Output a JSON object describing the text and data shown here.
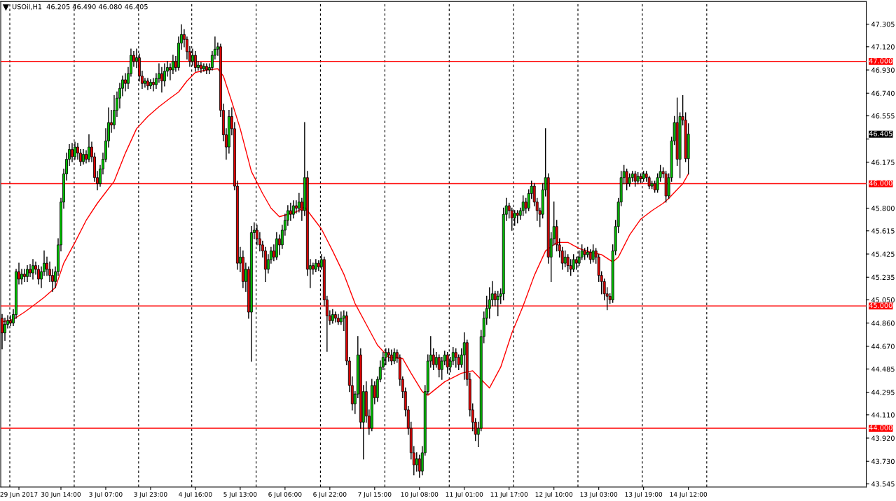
{
  "chart_data": {
    "type": "candlestick",
    "title": "USOil,H1  46.205 46.490 46.080 46.405",
    "colors": [
      "#e00000",
      "#00c000",
      "#00c000",
      "#e00000",
      "#00c000",
      "#00c000",
      "#e00000",
      "#00c000",
      "#e00000",
      "#00c000",
      "#e00000",
      "#00c000",
      "#e00000",
      "#e00000",
      "#00c000",
      "#00c000",
      "#e00000",
      "#e00000",
      "#e00000",
      "#00c000",
      "#00c000",
      "#00c000",
      "#00c000",
      "#00c000",
      "#00c000",
      "#e00000",
      "#00c000",
      "#e00000",
      "#e00000",
      "#00c000",
      "#e00000",
      "#00c000",
      "#e00000",
      "#e00000",
      "#e00000",
      "#00c000",
      "#00c000",
      "#00c000",
      "#00c000",
      "#e00000",
      "#00c000",
      "#00c000",
      "#00c000",
      "#00c000",
      "#e00000",
      "#00c000",
      "#00c000",
      "#e00000",
      "#00c000",
      "#e00000",
      "#e00000",
      "#00c000",
      "#e00000",
      "#00c000",
      "#e00000",
      "#00c000",
      "#00c000",
      "#e00000",
      "#00c000",
      "#00c000",
      "#e00000",
      "#00c000",
      "#e00000",
      "#00c000",
      "#00c000",
      "#e00000",
      "#e00000",
      "#e00000",
      "#00c000",
      "#e00000",
      "#00c000",
      "#e00000",
      "#00c000",
      "#e00000",
      "#00c000",
      "#00c000",
      "#00c000",
      "#00c000",
      "#e00000",
      "#e00000",
      "#e00000",
      "#00c000",
      "#e00000",
      "#e00000",
      "#e00000",
      "#00c000",
      "#e00000",
      "#00c000",
      "#e00000",
      "#00c000",
      "#00c000",
      "#e00000",
      "#e00000",
      "#e00000",
      "#e00000",
      "#00c000",
      "#00c000",
      "#e00000",
      "#00c000",
      "#e00000",
      "#00c000",
      "#00c000",
      "#00c000",
      "#e00000",
      "#00c000",
      "#e00000",
      "#00c000",
      "#e00000",
      "#00c000",
      "#e00000",
      "#00c000",
      "#e00000",
      "#00c000",
      "#e00000",
      "#00c000",
      "#e00000",
      "#e00000",
      "#e00000",
      "#00c000",
      "#e00000",
      "#e00000",
      "#00c000",
      "#00c000",
      "#e00000",
      "#e00000",
      "#e00000",
      "#00c000",
      "#00c000",
      "#e00000",
      "#00c000",
      "#e00000",
      "#e00000",
      "#00c000",
      "#e00000",
      "#00c000",
      "#00c000",
      "#00c000",
      "#00c000",
      "#e00000",
      "#e00000",
      "#00c000",
      "#e00000",
      "#e00000",
      "#e00000",
      "#e00000",
      "#e00000",
      "#e00000",
      "#e00000",
      "#00c000",
      "#e00000",
      "#00c000",
      "#00c000",
      "#00c000",
      "#00c000",
      "#e00000",
      "#00c000",
      "#e00000",
      "#00c000",
      "#00c000",
      "#e00000",
      "#00c000",
      "#00c000",
      "#e00000",
      "#e00000",
      "#00c000",
      "#00c000",
      "#e00000",
      "#e00000",
      "#e00000",
      "#e00000",
      "#00c000",
      "#00c000",
      "#00c000",
      "#00c000",
      "#00c000",
      "#00c000",
      "#e00000",
      "#00c000",
      "#00c000",
      "#00c000",
      "#00c000",
      "#e00000",
      "#e00000",
      "#00c000",
      "#e00000",
      "#00c000",
      "#00c000",
      "#e00000",
      "#00c000",
      "#00c000",
      "#e00000",
      "#e00000",
      "#e00000",
      "#00c000",
      "#00c000",
      "#e00000",
      "#00c000",
      "#00c000",
      "#e00000",
      "#e00000",
      "#e00000",
      "#00c000",
      "#e00000",
      "#e00000",
      "#00c000",
      "#e00000",
      "#00c000",
      "#00c000",
      "#e00000",
      "#00c000",
      "#e00000",
      "#00c000",
      "#e00000",
      "#e00000",
      "#e00000",
      "#e00000",
      "#e00000",
      "#e00000",
      "#00c000",
      "#00c000",
      "#00c000",
      "#00c000",
      "#00c000",
      "#e00000",
      "#00c000",
      "#00c000",
      "#e00000",
      "#00c000",
      "#e00000",
      "#00c000",
      "#e00000",
      "#e00000",
      "#00c000",
      "#e00000",
      "#00c000",
      "#00c000",
      "#e00000",
      "#e00000",
      "#00c000",
      "#00c000",
      "#00c000",
      "#e00000",
      "#00c000",
      "#e00000",
      "#e00000",
      "#00c000",
      null,
      null,
      null,
      null,
      null,
      null,
      null,
      null,
      null,
      null,
      null,
      null,
      null,
      null,
      null,
      null,
      null,
      null,
      null,
      null,
      null,
      null,
      null,
      null,
      null,
      null,
      null,
      null,
      null,
      null,
      null,
      null,
      null,
      null,
      null,
      null,
      null,
      null,
      null,
      null,
      null,
      null,
      null,
      null,
      null,
      null,
      null,
      null,
      null,
      null,
      null,
      null,
      null,
      null,
      null,
      null,
      null,
      null,
      null,
      null,
      null,
      null,
      null
    ],
    "categories": [
      null,
      null,
      null,
      null,
      null,
      null,
      "29 Jun 2017",
      null,
      null,
      null,
      null,
      null,
      null,
      null,
      null,
      null,
      null,
      null,
      null,
      null,
      null,
      "30 Jun 14:00",
      null,
      null,
      null,
      null,
      null,
      null,
      null,
      null,
      null,
      null,
      null,
      null,
      null,
      null,
      null,
      "3 Jul 07:00",
      null,
      null,
      null,
      null,
      null,
      null,
      null,
      null,
      null,
      null,
      null,
      null,
      null,
      null,
      null,
      "3 Jul 23:00",
      null,
      null,
      null,
      null,
      null,
      null,
      null,
      null,
      null,
      null,
      null,
      null,
      null,
      null,
      null,
      "4 Jul 16:00",
      null,
      null,
      null,
      null,
      null,
      null,
      null,
      null,
      null,
      null,
      null,
      null,
      null,
      null,
      null,
      "5 Jul 13:00",
      null,
      null,
      null,
      null,
      null,
      null,
      null,
      null,
      null,
      null,
      null,
      null,
      null,
      null,
      null,
      "6 Jul 06:00",
      null,
      null,
      null,
      null,
      null,
      null,
      null,
      null,
      null,
      null,
      null,
      null,
      null,
      null,
      null,
      "6 Jul 22:00",
      null,
      null,
      null,
      null,
      null,
      null,
      null,
      null,
      null,
      null,
      null,
      null,
      null,
      null,
      null,
      "7 Jul 15:00",
      null,
      null,
      null,
      null,
      null,
      null,
      null,
      null,
      null,
      null,
      null,
      null,
      null,
      null,
      null,
      "10 Jul 08:00",
      null,
      null,
      null,
      null,
      null,
      null,
      null,
      null,
      null,
      null,
      null,
      null,
      null,
      null,
      null,
      "11 Jul 01:00",
      null,
      null,
      null,
      null,
      null,
      null,
      null,
      null,
      null,
      null,
      null,
      null,
      null,
      null,
      null,
      "11 Jul 17:00",
      null,
      null,
      null,
      null,
      null,
      null,
      null,
      null,
      null,
      null,
      null,
      null,
      null,
      null,
      null,
      "12 Jul 10:00",
      null,
      null,
      null,
      null,
      null,
      null,
      null,
      null,
      null,
      null,
      null,
      null,
      null,
      null,
      null,
      "13 Jul 03:00",
      null,
      null,
      null,
      null,
      null,
      null,
      null,
      null,
      null,
      null,
      null,
      null,
      null,
      null,
      null,
      "13 Jul 19:00",
      null,
      null,
      null,
      null,
      null,
      null,
      null,
      null,
      null,
      null,
      null,
      null,
      null,
      null,
      null,
      "14 Jul 12:00",
      null,
      null,
      null,
      null,
      null,
      null,
      null,
      null,
      null,
      null,
      null,
      null,
      null,
      null,
      null,
      null,
      null,
      null,
      null,
      null,
      null,
      null,
      null,
      null,
      null,
      null,
      null,
      null,
      null,
      null,
      null,
      null,
      null,
      null,
      null,
      null,
      null,
      null,
      null,
      null,
      null,
      null,
      null,
      null,
      null,
      null,
      null,
      null,
      null,
      null,
      null,
      null,
      null,
      null,
      null,
      null,
      null,
      null,
      null,
      null,
      null,
      null,
      null
    ],
    "ohlc": [
      [
        44.9,
        44.93,
        44.65,
        44.78
      ],
      [
        44.78,
        44.9,
        44.72,
        44.85
      ],
      [
        44.85,
        44.92,
        44.82,
        44.88
      ],
      [
        44.88,
        44.92,
        44.84,
        44.86
      ],
      [
        44.86,
        44.97,
        44.84,
        44.93
      ],
      [
        44.93,
        45.3,
        44.9,
        45.28
      ],
      [
        45.28,
        45.35,
        45.18,
        45.22
      ],
      [
        45.22,
        45.3,
        45.18,
        45.26
      ],
      [
        45.26,
        45.3,
        45.2,
        45.24
      ],
      [
        45.24,
        45.33,
        45.2,
        45.3
      ],
      [
        45.3,
        45.34,
        45.24,
        45.27
      ],
      [
        45.27,
        45.38,
        45.22,
        45.33
      ],
      [
        45.33,
        45.36,
        45.26,
        45.3
      ],
      [
        45.3,
        45.33,
        45.18,
        45.22
      ],
      [
        45.22,
        45.32,
        45.15,
        45.28
      ],
      [
        45.28,
        45.45,
        45.25,
        45.35
      ],
      [
        45.35,
        45.4,
        45.25,
        45.3
      ],
      [
        45.3,
        45.36,
        45.2,
        45.25
      ],
      [
        45.25,
        45.3,
        45.12,
        45.2
      ],
      [
        45.2,
        45.32,
        45.15,
        45.28
      ],
      [
        45.28,
        45.55,
        45.25,
        45.5
      ],
      [
        45.5,
        45.88,
        45.45,
        45.85
      ],
      [
        45.85,
        46.12,
        45.8,
        46.08
      ],
      [
        46.08,
        46.25,
        46.03,
        46.2
      ],
      [
        46.2,
        46.32,
        46.15,
        46.28
      ],
      [
        46.28,
        46.33,
        46.18,
        46.22
      ],
      [
        46.22,
        46.34,
        46.2,
        46.3
      ],
      [
        46.3,
        46.33,
        46.2,
        46.25
      ],
      [
        46.25,
        46.28,
        46.15,
        46.18
      ],
      [
        46.18,
        46.28,
        46.16,
        46.24
      ],
      [
        46.24,
        46.27,
        46.17,
        46.2
      ],
      [
        46.2,
        46.4,
        46.18,
        46.3
      ],
      [
        46.3,
        46.34,
        46.18,
        46.22
      ],
      [
        46.22,
        46.25,
        46.02,
        46.05
      ],
      [
        46.05,
        46.1,
        45.95,
        46.0
      ],
      [
        46.0,
        46.15,
        45.98,
        46.12
      ],
      [
        46.12,
        46.25,
        46.08,
        46.2
      ],
      [
        46.2,
        46.45,
        46.18,
        46.35
      ],
      [
        46.35,
        46.62,
        46.3,
        46.5
      ],
      [
        46.5,
        46.6,
        46.42,
        46.48
      ],
      [
        46.48,
        46.72,
        46.45,
        46.6
      ],
      [
        46.6,
        46.75,
        46.55,
        46.7
      ],
      [
        46.7,
        46.82,
        46.62,
        46.78
      ],
      [
        46.78,
        46.88,
        46.72,
        46.85
      ],
      [
        46.85,
        46.9,
        46.76,
        46.82
      ],
      [
        46.82,
        46.95,
        46.78,
        46.9
      ],
      [
        46.9,
        47.1,
        46.88,
        47.05
      ],
      [
        47.05,
        47.08,
        46.96,
        47.0
      ],
      [
        47.0,
        47.1,
        46.95,
        47.03
      ],
      [
        47.03,
        47.06,
        46.84,
        46.88
      ],
      [
        46.88,
        46.92,
        46.78,
        46.82
      ],
      [
        46.82,
        46.86,
        46.79,
        46.84
      ],
      [
        46.84,
        46.86,
        46.77,
        46.8
      ],
      [
        46.8,
        46.85,
        46.78,
        46.83
      ],
      [
        46.83,
        46.86,
        46.76,
        46.81
      ],
      [
        46.81,
        46.9,
        46.78,
        46.86
      ],
      [
        46.86,
        46.98,
        46.83,
        46.9
      ],
      [
        46.9,
        46.95,
        46.75,
        46.84
      ],
      [
        46.84,
        46.98,
        46.8,
        46.92
      ],
      [
        46.92,
        47.0,
        46.88,
        46.95
      ],
      [
        46.95,
        46.98,
        46.85,
        46.93
      ],
      [
        46.93,
        47.05,
        46.9,
        47.0
      ],
      [
        47.0,
        47.04,
        46.92,
        46.95
      ],
      [
        46.95,
        47.2,
        46.93,
        47.15
      ],
      [
        47.15,
        47.3,
        47.1,
        47.22
      ],
      [
        47.22,
        47.26,
        47.12,
        47.18
      ],
      [
        47.18,
        47.2,
        47.02,
        47.08
      ],
      [
        47.08,
        47.12,
        46.96,
        47.0
      ],
      [
        47.0,
        47.1,
        46.97,
        47.05
      ],
      [
        47.05,
        47.08,
        46.92,
        46.95
      ],
      [
        46.95,
        47.0,
        46.93,
        46.97
      ],
      [
        46.97,
        46.99,
        46.91,
        46.94
      ],
      [
        46.94,
        46.98,
        46.92,
        46.96
      ],
      [
        46.96,
        46.98,
        46.9,
        46.93
      ],
      [
        46.93,
        46.98,
        46.9,
        46.95
      ],
      [
        46.95,
        47.08,
        46.93,
        47.05
      ],
      [
        47.05,
        47.2,
        47.02,
        47.1
      ],
      [
        47.1,
        47.15,
        47.05,
        47.12
      ],
      [
        47.12,
        47.14,
        46.55,
        46.6
      ],
      [
        46.6,
        46.65,
        46.35,
        46.4
      ],
      [
        46.4,
        46.45,
        46.2,
        46.3
      ],
      [
        46.3,
        46.6,
        46.25,
        46.55
      ],
      [
        46.55,
        46.62,
        46.4,
        46.45
      ],
      [
        46.45,
        46.5,
        45.95,
        45.98
      ],
      [
        45.98,
        46.02,
        45.3,
        45.35
      ],
      [
        45.35,
        45.48,
        45.28,
        45.4
      ],
      [
        45.4,
        45.45,
        45.15,
        45.2
      ],
      [
        45.2,
        45.35,
        45.12,
        45.3
      ],
      [
        45.3,
        45.32,
        44.9,
        44.95
      ],
      [
        44.95,
        45.65,
        44.55,
        45.6
      ],
      [
        45.6,
        45.68,
        45.55,
        45.62
      ],
      [
        45.62,
        45.66,
        45.5,
        45.55
      ],
      [
        45.55,
        45.6,
        45.45,
        45.5
      ],
      [
        45.5,
        45.53,
        45.4,
        45.45
      ],
      [
        45.45,
        45.48,
        45.2,
        45.3
      ],
      [
        45.3,
        45.42,
        45.27,
        45.38
      ],
      [
        45.38,
        45.48,
        45.35,
        45.45
      ],
      [
        45.45,
        45.5,
        45.37,
        45.4
      ],
      [
        45.4,
        45.6,
        45.38,
        45.55
      ],
      [
        45.55,
        45.58,
        45.42,
        45.5
      ],
      [
        45.5,
        45.66,
        45.47,
        45.62
      ],
      [
        45.62,
        45.75,
        45.58,
        45.7
      ],
      [
        45.7,
        45.82,
        45.66,
        45.78
      ],
      [
        45.78,
        45.84,
        45.7,
        45.75
      ],
      [
        45.75,
        45.86,
        45.72,
        45.82
      ],
      [
        45.82,
        45.86,
        45.76,
        45.8
      ],
      [
        45.8,
        45.92,
        45.77,
        45.85
      ],
      [
        45.85,
        45.88,
        45.7,
        45.78
      ],
      [
        45.78,
        46.5,
        45.74,
        46.05
      ],
      [
        46.05,
        46.1,
        45.25,
        45.3
      ],
      [
        45.3,
        45.38,
        45.15,
        45.33
      ],
      [
        45.33,
        45.35,
        45.26,
        45.3
      ],
      [
        45.3,
        45.38,
        45.28,
        45.35
      ],
      [
        45.35,
        45.37,
        45.29,
        45.32
      ],
      [
        45.32,
        45.42,
        45.3,
        45.38
      ],
      [
        45.38,
        45.4,
        45.0,
        45.05
      ],
      [
        45.05,
        45.08,
        44.63,
        44.92
      ],
      [
        44.92,
        44.96,
        44.85,
        44.88
      ],
      [
        44.88,
        44.97,
        44.86,
        44.93
      ],
      [
        44.93,
        44.95,
        44.87,
        44.9
      ],
      [
        44.9,
        44.93,
        44.85,
        44.87
      ],
      [
        44.87,
        44.95,
        44.85,
        44.9
      ],
      [
        44.9,
        44.96,
        44.8,
        44.92
      ],
      [
        44.92,
        44.95,
        44.52,
        44.55
      ],
      [
        44.55,
        44.58,
        44.3,
        44.35
      ],
      [
        44.35,
        44.42,
        44.15,
        44.2
      ],
      [
        44.2,
        44.3,
        44.12,
        44.28
      ],
      [
        44.28,
        44.75,
        44.25,
        44.6
      ],
      [
        44.6,
        44.65,
        44.0,
        44.05
      ],
      [
        44.05,
        44.35,
        43.75,
        44.3
      ],
      [
        44.3,
        44.38,
        44.05,
        44.1
      ],
      [
        44.1,
        44.15,
        43.95,
        44.0
      ],
      [
        44.0,
        44.4,
        43.98,
        44.35
      ],
      [
        44.35,
        44.38,
        44.2,
        44.25
      ],
      [
        44.25,
        44.42,
        44.22,
        44.4
      ],
      [
        44.4,
        44.55,
        44.38,
        44.5
      ],
      [
        44.5,
        44.62,
        44.48,
        44.58
      ],
      [
        44.58,
        44.65,
        44.52,
        44.62
      ],
      [
        44.62,
        44.65,
        44.55,
        44.6
      ],
      [
        44.6,
        44.64,
        44.52,
        44.55
      ],
      [
        44.55,
        44.65,
        44.53,
        44.62
      ],
      [
        44.62,
        44.64,
        44.54,
        44.58
      ],
      [
        44.58,
        44.6,
        44.35,
        44.4
      ],
      [
        44.4,
        44.42,
        44.25,
        44.3
      ],
      [
        44.3,
        44.33,
        44.1,
        44.15
      ],
      [
        44.15,
        44.18,
        43.95,
        44.0
      ],
      [
        44.0,
        44.05,
        43.75,
        43.8
      ],
      [
        43.8,
        43.85,
        43.62,
        43.7
      ],
      [
        43.7,
        43.8,
        43.65,
        43.75
      ],
      [
        43.75,
        43.78,
        43.6,
        43.65
      ],
      [
        43.65,
        43.85,
        43.62,
        43.8
      ],
      [
        43.8,
        44.35,
        43.78,
        44.3
      ],
      [
        44.3,
        44.6,
        44.28,
        44.55
      ],
      [
        44.55,
        44.75,
        44.5,
        44.6
      ],
      [
        44.6,
        44.65,
        44.48,
        44.52
      ],
      [
        44.52,
        44.62,
        44.5,
        44.58
      ],
      [
        44.58,
        44.6,
        44.42,
        44.48
      ],
      [
        44.48,
        44.58,
        44.4,
        44.55
      ],
      [
        44.55,
        44.63,
        44.52,
        44.6
      ],
      [
        44.6,
        44.62,
        44.45,
        44.5
      ],
      [
        44.5,
        44.58,
        44.46,
        44.55
      ],
      [
        44.55,
        44.66,
        44.52,
        44.62
      ],
      [
        44.62,
        44.65,
        44.5,
        44.58
      ],
      [
        44.58,
        44.6,
        44.48,
        44.52
      ],
      [
        44.52,
        44.65,
        44.5,
        44.6
      ],
      [
        44.6,
        44.78,
        44.4,
        44.7
      ],
      [
        44.7,
        44.72,
        44.35,
        44.4
      ],
      [
        44.4,
        44.45,
        44.1,
        44.15
      ],
      [
        44.15,
        44.2,
        43.98,
        44.05
      ],
      [
        44.05,
        44.08,
        43.9,
        43.95
      ],
      [
        43.95,
        44.05,
        43.85,
        44.0
      ],
      [
        44.0,
        44.8,
        43.98,
        44.75
      ],
      [
        44.75,
        44.95,
        44.7,
        44.9
      ],
      [
        44.9,
        45.08,
        44.85,
        44.98
      ],
      [
        44.98,
        45.15,
        44.9,
        45.05
      ],
      [
        45.05,
        45.2,
        45.0,
        45.1
      ],
      [
        45.1,
        45.12,
        45.0,
        45.05
      ],
      [
        45.05,
        45.12,
        44.92,
        45.08
      ],
      [
        45.08,
        45.14,
        45.02,
        45.1
      ],
      [
        45.1,
        45.8,
        45.05,
        45.75
      ],
      [
        45.75,
        45.88,
        45.7,
        45.82
      ],
      [
        45.82,
        45.84,
        45.72,
        45.78
      ],
      [
        45.78,
        45.8,
        45.62,
        45.72
      ],
      [
        45.72,
        45.78,
        45.66,
        45.76
      ],
      [
        45.76,
        45.78,
        45.68,
        45.74
      ],
      [
        45.74,
        45.8,
        45.71,
        45.78
      ],
      [
        45.78,
        45.9,
        45.74,
        45.85
      ],
      [
        45.85,
        45.88,
        45.76,
        45.8
      ],
      [
        45.8,
        45.95,
        45.78,
        45.92
      ],
      [
        45.92,
        46.02,
        45.88,
        45.98
      ],
      [
        45.98,
        46.0,
        45.82,
        45.85
      ],
      [
        45.85,
        45.88,
        45.7,
        45.78
      ],
      [
        45.78,
        45.8,
        45.65,
        45.75
      ],
      [
        45.75,
        46.0,
        45.72,
        45.95
      ],
      [
        45.95,
        46.45,
        45.9,
        46.05
      ],
      [
        46.05,
        46.08,
        45.35,
        45.4
      ],
      [
        45.4,
        45.6,
        45.2,
        45.55
      ],
      [
        45.55,
        45.85,
        45.5,
        45.65
      ],
      [
        45.65,
        45.7,
        45.45,
        45.5
      ],
      [
        45.5,
        45.55,
        45.4,
        45.45
      ],
      [
        45.45,
        45.48,
        45.3,
        45.35
      ],
      [
        45.35,
        45.45,
        45.32,
        45.4
      ],
      [
        45.4,
        45.42,
        45.28,
        45.33
      ],
      [
        45.33,
        45.38,
        45.25,
        45.3
      ],
      [
        45.3,
        45.42,
        45.28,
        45.38
      ],
      [
        45.38,
        45.4,
        45.3,
        45.35
      ],
      [
        45.35,
        45.45,
        45.33,
        45.4
      ],
      [
        45.4,
        45.5,
        45.38,
        45.45
      ],
      [
        45.45,
        45.47,
        45.38,
        45.42
      ],
      [
        45.42,
        45.48,
        45.4,
        45.44
      ],
      [
        45.44,
        45.46,
        45.35,
        45.38
      ],
      [
        45.38,
        45.5,
        45.36,
        45.45
      ],
      [
        45.45,
        45.47,
        45.35,
        45.4
      ],
      [
        45.4,
        45.42,
        45.2,
        45.25
      ],
      [
        45.25,
        45.28,
        45.1,
        45.2
      ],
      [
        45.2,
        45.22,
        45.05,
        45.1
      ],
      [
        45.1,
        45.15,
        44.97,
        45.08
      ],
      [
        45.08,
        45.1,
        45.02,
        45.05
      ],
      [
        45.05,
        45.5,
        45.03,
        45.45
      ],
      [
        45.45,
        45.7,
        45.42,
        45.65
      ],
      [
        45.65,
        45.88,
        45.6,
        45.85
      ],
      [
        45.85,
        46.1,
        45.82,
        46.05
      ],
      [
        46.05,
        46.15,
        46.0,
        46.1
      ],
      [
        46.1,
        46.12,
        45.95,
        46.0
      ],
      [
        46.0,
        46.08,
        45.98,
        46.05
      ],
      [
        46.05,
        46.1,
        46.02,
        46.08
      ],
      [
        46.08,
        46.1,
        45.98,
        46.02
      ],
      [
        46.02,
        46.09,
        46.0,
        46.06
      ],
      [
        46.06,
        46.08,
        46.01,
        46.04
      ],
      [
        46.04,
        46.1,
        46.02,
        46.08
      ],
      [
        46.08,
        46.1,
        46.02,
        46.05
      ],
      [
        46.05,
        46.06,
        45.96,
        45.98
      ],
      [
        45.98,
        46.02,
        45.96,
        46.0
      ],
      [
        46.0,
        46.02,
        45.93,
        45.95
      ],
      [
        45.95,
        46.08,
        45.93,
        46.05
      ],
      [
        46.05,
        46.15,
        46.02,
        46.1
      ],
      [
        46.1,
        46.13,
        46.05,
        46.08
      ],
      [
        46.08,
        46.1,
        45.85,
        45.9
      ],
      [
        45.9,
        46.08,
        45.88,
        46.05
      ],
      [
        46.05,
        46.38,
        46.02,
        46.35
      ],
      [
        46.35,
        46.55,
        46.32,
        46.5
      ],
      [
        46.5,
        46.7,
        46.15,
        46.2
      ],
      [
        46.2,
        46.58,
        46.05,
        46.55
      ],
      [
        46.55,
        46.72,
        46.48,
        46.52
      ],
      [
        46.52,
        46.58,
        46.18,
        46.205
      ],
      [
        46.205,
        46.49,
        46.08,
        46.405
      ],
      null,
      null,
      null,
      null,
      null,
      null,
      null,
      null,
      null,
      null,
      null,
      null,
      null,
      null,
      null,
      null,
      null,
      null,
      null,
      null,
      null,
      null,
      null,
      null,
      null,
      null,
      null,
      null,
      null,
      null,
      null,
      null,
      null,
      null,
      null,
      null,
      null,
      null,
      null,
      null,
      null,
      null,
      null,
      null,
      null,
      null,
      null,
      null,
      null,
      null,
      null,
      null,
      null,
      null,
      null,
      null,
      null,
      null,
      null,
      null,
      null,
      null,
      null
    ],
    "series": [
      {
        "type": "line",
        "color": "#ff0000",
        "values": [
          44.87,
          null,
          null,
          null,
          44.89,
          null,
          null,
          null,
          44.95,
          null,
          null,
          45.0,
          null,
          null,
          null,
          45.07,
          null,
          null,
          null,
          45.15,
          null,
          null,
          45.35,
          null,
          null,
          null,
          45.52,
          null,
          null,
          null,
          45.7,
          null,
          null,
          null,
          45.84,
          null,
          null,
          45.93,
          null,
          null,
          46.02,
          null,
          null,
          null,
          46.25,
          null,
          null,
          null,
          46.45,
          null,
          null,
          null,
          46.55,
          null,
          null,
          null,
          46.63,
          null,
          null,
          null,
          46.7,
          null,
          null,
          46.75,
          null,
          null,
          46.84,
          null,
          null,
          46.91,
          null,
          null,
          null,
          46.93,
          null,
          null,
          null,
          46.94,
          null,
          46.88,
          null,
          null,
          46.67,
          null,
          null,
          46.45,
          null,
          null,
          null,
          46.1,
          null,
          null,
          null,
          45.92,
          null,
          null,
          45.8,
          null,
          null,
          45.73,
          null,
          null,
          45.75,
          null,
          null,
          45.77,
          null,
          null,
          45.81,
          null,
          45.75,
          null,
          null,
          null,
          45.63,
          null,
          null,
          null,
          45.45,
          null,
          null,
          null,
          45.26,
          null,
          null,
          null,
          45.02,
          null,
          null,
          null,
          44.85,
          null,
          null,
          null,
          44.68,
          null,
          null,
          null,
          44.58,
          null,
          null,
          null,
          null,
          44.57,
          null,
          null,
          44.45,
          null,
          null,
          null,
          44.3,
          null,
          44.27,
          null,
          null,
          null,
          null,
          null,
          44.38,
          null,
          null,
          null,
          null,
          null,
          44.45,
          null,
          null,
          null,
          44.47,
          null,
          null,
          44.4,
          null,
          null,
          44.33,
          null,
          null,
          null,
          44.5,
          null,
          null,
          null,
          44.78,
          null,
          null,
          null,
          45.0,
          null,
          null,
          null,
          45.25,
          null,
          null,
          null,
          45.45,
          null,
          null,
          null,
          45.52,
          null,
          null,
          null,
          45.52,
          null,
          null,
          null,
          45.47,
          null,
          null,
          null,
          45.44,
          null,
          null,
          null,
          45.42,
          null,
          null,
          null,
          45.36,
          null,
          45.4,
          null,
          null,
          null,
          45.58,
          null,
          null,
          null,
          45.71,
          null,
          null,
          null,
          45.78,
          null,
          null,
          null,
          45.84,
          null,
          45.88,
          null,
          null,
          null,
          null,
          46.0,
          null,
          46.08,
          null,
          null,
          null,
          null,
          null,
          null,
          null,
          null,
          null,
          null,
          null,
          null,
          null,
          null,
          null,
          null,
          null,
          null,
          null,
          null,
          null,
          null,
          null,
          null,
          null,
          null,
          null,
          null,
          null,
          null,
          null,
          null,
          null,
          null,
          null,
          null,
          null,
          null,
          null,
          null,
          null,
          null,
          null,
          null,
          null,
          null,
          null,
          null,
          null,
          null,
          null,
          null,
          null,
          null,
          null,
          null,
          null,
          null,
          null,
          null,
          null,
          null,
          null
        ]
      }
    ],
    "ylim": [
      43.52,
      47.49
    ],
    "yticks": [
      {
        "value": 47.305,
        "label": "47.305"
      },
      {
        "value": 47.12,
        "label": "47.120"
      },
      {
        "value": 46.93,
        "label": "46.930"
      },
      {
        "value": 46.74,
        "label": "46.740"
      },
      {
        "value": 46.555,
        "label": "46.555"
      },
      {
        "value": 46.365,
        "label": null
      },
      {
        "value": 46.175,
        "label": "46.175"
      },
      {
        "value": 45.8,
        "label": "45.800"
      },
      {
        "value": 45.615,
        "label": "45.615"
      },
      {
        "value": 45.425,
        "label": "45.425"
      },
      {
        "value": 45.235,
        "label": "45.235"
      },
      {
        "value": 45.05,
        "label": "45.050"
      },
      {
        "value": 44.86,
        "label": "44.860"
      },
      {
        "value": 44.67,
        "label": "44.670"
      },
      {
        "value": 44.485,
        "label": "44.485"
      },
      {
        "value": 44.295,
        "label": "44.295"
      },
      {
        "value": 44.11,
        "label": "44.110"
      },
      {
        "value": 43.92,
        "label": "43.920"
      },
      {
        "value": 43.73,
        "label": "43.730"
      },
      {
        "value": 43.545,
        "label": "43.545"
      }
    ],
    "ref_lines": [
      {
        "axis": "y",
        "value": 47,
        "label": "47.000",
        "color": "#ff0000",
        "line_style": "solid"
      },
      {
        "axis": "y",
        "value": 46,
        "label": "46.000",
        "color": "#ff0000",
        "line_style": "solid"
      },
      {
        "axis": "y",
        "value": 45,
        "label": "45.000",
        "color": "#ff0000",
        "line_style": "solid"
      },
      {
        "axis": "y",
        "value": 44,
        "label": "44.000",
        "color": "#ff0000",
        "line_style": "solid"
      }
    ],
    "annotations": [
      "46.405"
    ]
  }
}
